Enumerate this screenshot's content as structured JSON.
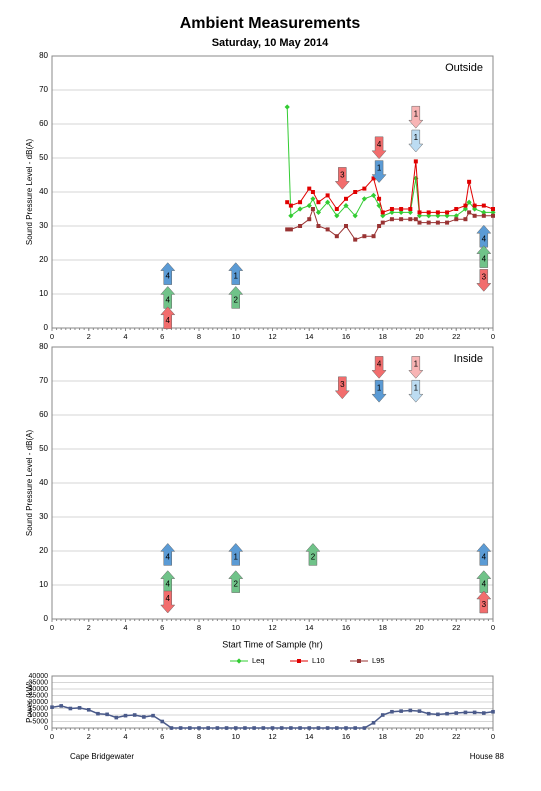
{
  "title": "Ambient Measurements",
  "subtitle": "Saturday, 10 May 2014",
  "footer": {
    "left": "Cape Bridgewater",
    "right": "House 88"
  },
  "chart_data": [
    {
      "type": "line",
      "label": "Outside",
      "ylabel": "Sound Pressure Level - dB(A)",
      "xlim": [
        0,
        24
      ],
      "xticks": [
        0,
        2,
        4,
        6,
        8,
        10,
        12,
        14,
        16,
        18,
        20,
        22,
        {
          "value": 24,
          "label": "0"
        }
      ],
      "ylim": [
        0,
        80
      ],
      "yticks": [
        0,
        10,
        20,
        30,
        40,
        50,
        60,
        70,
        80
      ],
      "grid": true,
      "legend": "bottom",
      "x": [
        12.8,
        13,
        13.5,
        14,
        14.2,
        14.5,
        15,
        15.5,
        16,
        16.5,
        17,
        17.5,
        17.8,
        18,
        18.5,
        19,
        19.5,
        19.8,
        20,
        20.5,
        21,
        21.5,
        22,
        22.5,
        22.7,
        23,
        23.5,
        24
      ],
      "series": [
        {
          "name": "Leq",
          "color": "#33cc33",
          "values": [
            65,
            33,
            35,
            36,
            38,
            34,
            37,
            33,
            36,
            33,
            38,
            39,
            36,
            33,
            34,
            34,
            34,
            44,
            33,
            33,
            33,
            33,
            33,
            35,
            37,
            35,
            34,
            34
          ]
        },
        {
          "name": "L10",
          "color": "#e00000",
          "values": [
            37,
            36,
            37,
            41,
            40,
            37,
            39,
            35,
            38,
            40,
            41,
            44,
            38,
            34,
            35,
            35,
            35,
            49,
            34,
            34,
            34,
            34,
            35,
            36,
            43,
            36,
            36,
            35
          ]
        },
        {
          "name": "L95",
          "color": "#993333",
          "values": [
            29,
            29,
            30,
            32,
            35,
            30,
            29,
            27,
            30,
            26,
            27,
            27,
            30,
            31,
            32,
            32,
            32,
            32,
            31,
            31,
            31,
            31,
            32,
            32,
            34,
            33,
            33,
            33
          ]
        }
      ],
      "annotations": [
        {
          "x": 6.3,
          "y": 16,
          "label": "4",
          "color": "#5b9bd5",
          "dir": "up"
        },
        {
          "x": 6.3,
          "y": 9,
          "label": "4",
          "color": "#70c389",
          "dir": "up"
        },
        {
          "x": 6.3,
          "y": 3,
          "label": "4",
          "color": "#f26d6d",
          "dir": "up"
        },
        {
          "x": 10,
          "y": 16,
          "label": "1",
          "color": "#5b9bd5",
          "dir": "up"
        },
        {
          "x": 10,
          "y": 9,
          "label": "2",
          "color": "#70c389",
          "dir": "up"
        },
        {
          "x": 15.8,
          "y": 44,
          "label": "3",
          "color": "#f26d6d",
          "dir": "down"
        },
        {
          "x": 17.8,
          "y": 53,
          "label": "4",
          "color": "#f26d6d",
          "dir": "down"
        },
        {
          "x": 17.8,
          "y": 46,
          "label": "1",
          "color": "#5b9bd5",
          "dir": "down"
        },
        {
          "x": 19.8,
          "y": 62,
          "label": "1",
          "color": "#f8b4b4",
          "dir": "down"
        },
        {
          "x": 19.8,
          "y": 55,
          "label": "1",
          "color": "#bcdcf2",
          "dir": "down"
        },
        {
          "x": 23.5,
          "y": 27,
          "label": "4",
          "color": "#5b9bd5",
          "dir": "up"
        },
        {
          "x": 23.5,
          "y": 21,
          "label": "4",
          "color": "#70c389",
          "dir": "up"
        },
        {
          "x": 23.5,
          "y": 14,
          "label": "3",
          "color": "#f26d6d",
          "dir": "down"
        }
      ]
    },
    {
      "type": "line",
      "label": "Inside",
      "ylabel": "Sound Pressure Level - dB(A)",
      "xlabel": "Start Time of Sample (hr)",
      "xlim": [
        0,
        24
      ],
      "xticks": [
        0,
        2,
        4,
        6,
        8,
        10,
        12,
        14,
        16,
        18,
        20,
        22,
        {
          "value": 24,
          "label": "0"
        }
      ],
      "ylim": [
        0,
        80
      ],
      "yticks": [
        0,
        10,
        20,
        30,
        40,
        50,
        60,
        70,
        80
      ],
      "grid": true,
      "annotations": [
        {
          "x": 6.3,
          "y": 19,
          "label": "4",
          "color": "#5b9bd5",
          "dir": "up"
        },
        {
          "x": 6.3,
          "y": 11,
          "label": "4",
          "color": "#70c389",
          "dir": "up"
        },
        {
          "x": 6.3,
          "y": 5,
          "label": "4",
          "color": "#f26d6d",
          "dir": "down"
        },
        {
          "x": 10,
          "y": 19,
          "label": "1",
          "color": "#5b9bd5",
          "dir": "up"
        },
        {
          "x": 10,
          "y": 11,
          "label": "2",
          "color": "#70c389",
          "dir": "up"
        },
        {
          "x": 14.2,
          "y": 19,
          "label": "2",
          "color": "#70c389",
          "dir": "up"
        },
        {
          "x": 15.8,
          "y": 68,
          "label": "3",
          "color": "#f26d6d",
          "dir": "down"
        },
        {
          "x": 17.8,
          "y": 74,
          "label": "4",
          "color": "#f26d6d",
          "dir": "down"
        },
        {
          "x": 17.8,
          "y": 67,
          "label": "1",
          "color": "#5b9bd5",
          "dir": "down"
        },
        {
          "x": 19.8,
          "y": 74,
          "label": "1",
          "color": "#f8b4b4",
          "dir": "down"
        },
        {
          "x": 19.8,
          "y": 67,
          "label": "1",
          "color": "#bcdcf2",
          "dir": "down"
        },
        {
          "x": 23.5,
          "y": 19,
          "label": "4",
          "color": "#5b9bd5",
          "dir": "up"
        },
        {
          "x": 23.5,
          "y": 11,
          "label": "4",
          "color": "#70c389",
          "dir": "up"
        },
        {
          "x": 23.5,
          "y": 5,
          "label": "3",
          "color": "#f26d6d",
          "dir": "up"
        }
      ]
    },
    {
      "type": "line",
      "ylabel": "Power (kW)",
      "xlim": [
        0,
        24
      ],
      "xticks": [
        0,
        2,
        4,
        6,
        8,
        10,
        12,
        14,
        16,
        18,
        20,
        22,
        {
          "value": 24,
          "label": "0"
        }
      ],
      "ylim": [
        0,
        40000
      ],
      "yticks": [
        0,
        5000,
        10000,
        15000,
        20000,
        25000,
        30000,
        35000,
        40000
      ],
      "grid": true,
      "x": [
        0,
        0.5,
        1,
        1.5,
        2,
        2.5,
        3,
        3.5,
        4,
        4.5,
        5,
        5.5,
        6,
        6.5,
        7,
        7.5,
        8,
        8.5,
        9,
        9.5,
        10,
        10.5,
        11,
        11.5,
        12,
        12.5,
        13,
        13.5,
        14,
        14.5,
        15,
        15.5,
        16,
        16.5,
        17,
        17.5,
        18,
        18.5,
        19,
        19.5,
        20,
        20.5,
        21,
        21.5,
        22,
        22.5,
        23,
        23.5,
        24
      ],
      "series": [
        {
          "color": "#4a5a8a",
          "values": [
            16000,
            17000,
            15000,
            15500,
            14000,
            11000,
            10500,
            8000,
            9500,
            10000,
            8500,
            9500,
            5000,
            0,
            0,
            0,
            0,
            0,
            0,
            0,
            0,
            0,
            0,
            0,
            0,
            0,
            0,
            0,
            0,
            0,
            0,
            0,
            0,
            0,
            0,
            4000,
            10000,
            12500,
            13000,
            13500,
            13000,
            11000,
            10500,
            11000,
            11500,
            12000,
            12000,
            11500,
            12500
          ]
        }
      ]
    }
  ]
}
